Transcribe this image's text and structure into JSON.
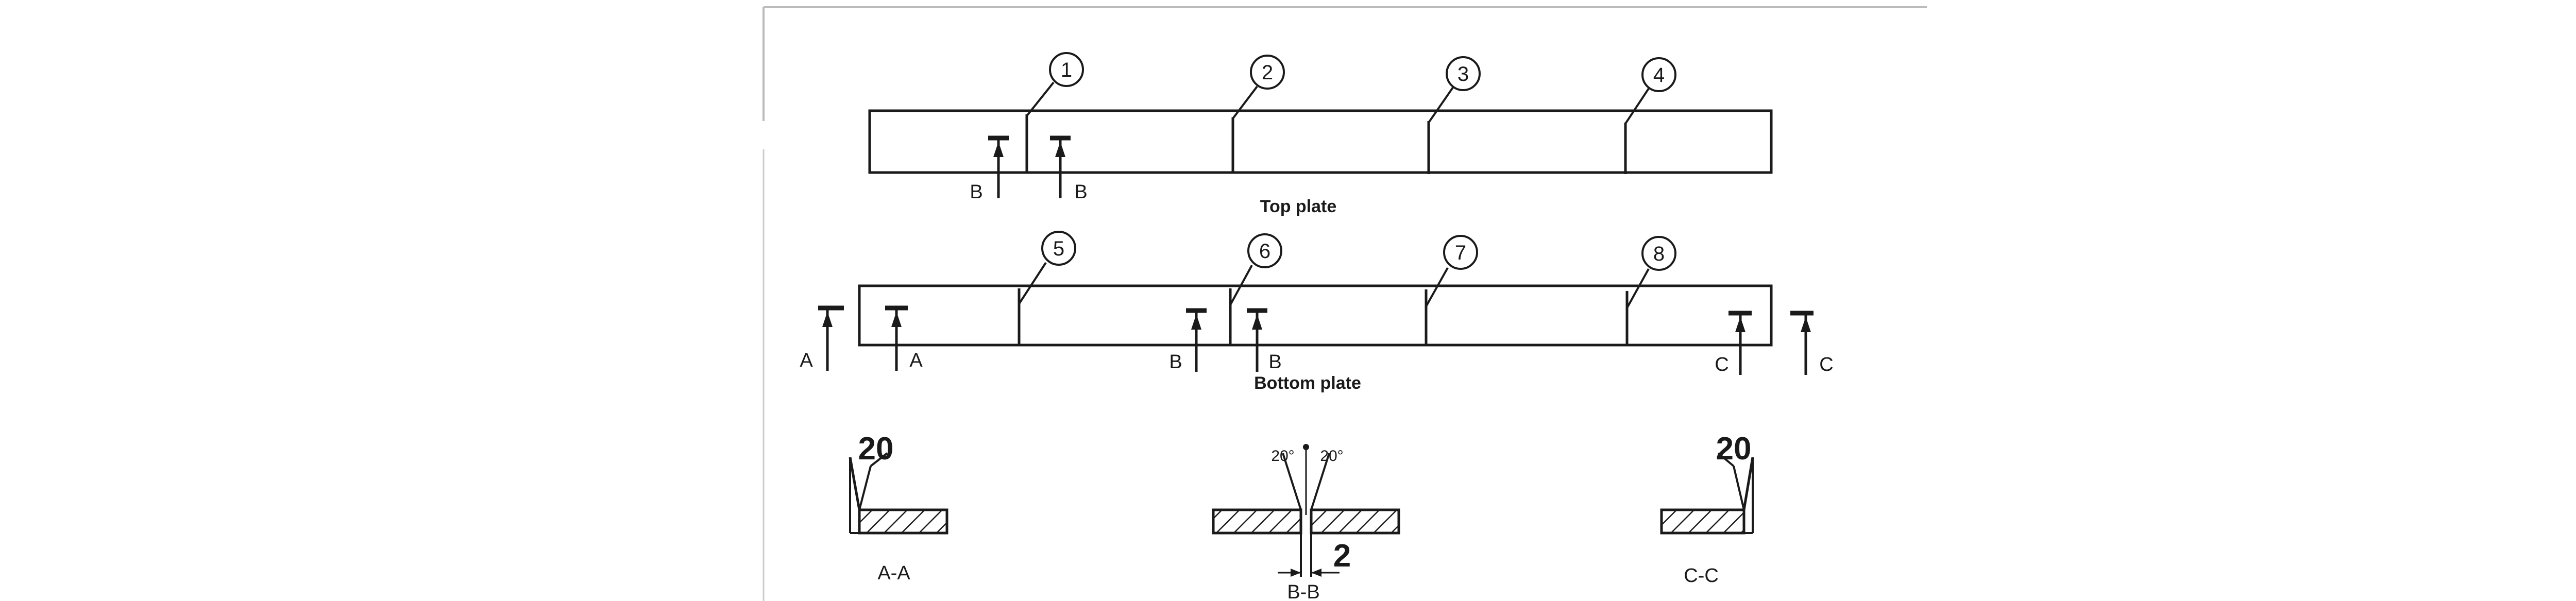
{
  "plates": {
    "top_label": "Top plate",
    "bottom_label": "Bottom plate"
  },
  "joints": {
    "j1": "1",
    "j2": "2",
    "j3": "3",
    "j4": "4",
    "j5": "5",
    "j6": "6",
    "j7": "7",
    "j8": "8"
  },
  "section_marks": {
    "top_b_left": "B",
    "top_b_right": "B",
    "bot_a_outer": "A",
    "bot_a_inner": "A",
    "bot_b_left": "B",
    "bot_b_right": "B",
    "bot_c_inner": "C",
    "bot_c_outer": "C"
  },
  "sections": {
    "aa": {
      "title": "A-A",
      "angle": "20"
    },
    "bb": {
      "title": "B-B",
      "angle_left": "20°",
      "angle_right": "20°",
      "gap": "2"
    },
    "cc": {
      "title": "C-C",
      "angle": "20"
    }
  },
  "colors": {
    "ink": "#1a1a1a",
    "background": "#ffffff"
  }
}
